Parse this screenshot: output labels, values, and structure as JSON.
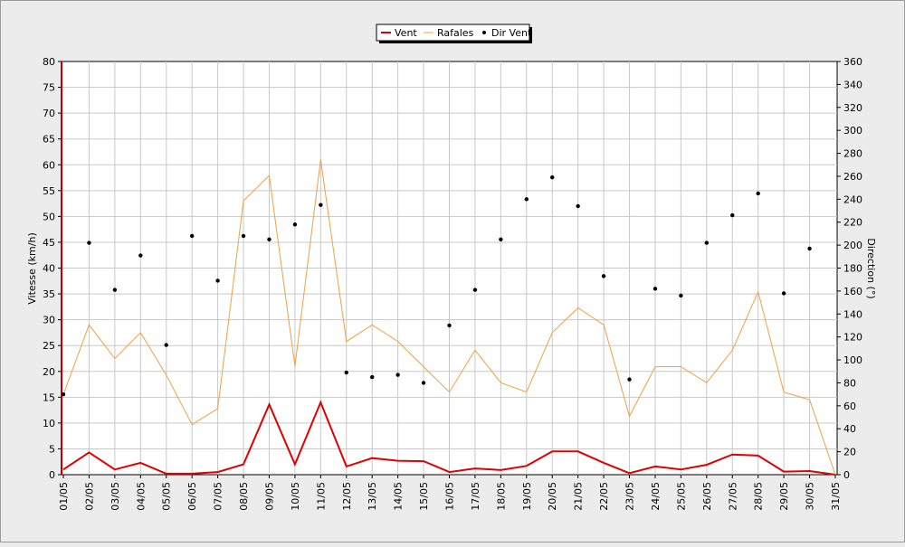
{
  "chart_data": {
    "type": "line",
    "legend": {
      "position": "top-center",
      "items": [
        {
          "label": "Vent",
          "color": "#e00000",
          "style": "line"
        },
        {
          "label": "Rafales",
          "color": "#f0a040",
          "style": "line"
        },
        {
          "label": "Dir Vent",
          "color": "#000000",
          "style": "dot"
        }
      ]
    },
    "y_left": {
      "label": "Vitesse (km/h)",
      "min": 0,
      "max": 80,
      "step": 5
    },
    "y_right": {
      "label": "Direction (°)",
      "min": 0,
      "max": 360,
      "step": 20
    },
    "grid": true,
    "categories": [
      "01/05",
      "02/05",
      "03/05",
      "04/05",
      "05/05",
      "06/05",
      "07/05",
      "08/05",
      "09/05",
      "10/05",
      "11/05",
      "12/05",
      "13/05",
      "14/05",
      "15/05",
      "16/05",
      "17/05",
      "18/05",
      "19/05",
      "20/05",
      "21/05",
      "22/05",
      "23/05",
      "24/05",
      "25/05",
      "26/05",
      "27/05",
      "28/05",
      "29/05",
      "30/05",
      "31/05"
    ],
    "series": [
      {
        "name": "Vent",
        "axis": "left",
        "kind": "line",
        "color": "#e00000",
        "values": [
          1,
          4.3,
          1,
          2.3,
          0.2,
          0.2,
          0.5,
          2,
          13.6,
          2,
          14,
          1.6,
          3.2,
          2.7,
          2.6,
          0.5,
          1.2,
          0.9,
          1.7,
          4.5,
          4.5,
          2.3,
          0.3,
          1.6,
          1,
          1.9,
          3.9,
          3.7,
          0.6,
          0.7,
          0
        ]
      },
      {
        "name": "Rafales",
        "axis": "left",
        "kind": "line",
        "color": "#f0a040",
        "values": [
          15.5,
          29,
          22.5,
          27.5,
          19.3,
          9.7,
          12.8,
          53,
          57.9,
          21,
          61,
          25.8,
          29,
          25.8,
          20.9,
          16,
          24.1,
          17.8,
          16,
          27.5,
          32.3,
          29,
          11.3,
          20.9,
          20.9,
          17.8,
          24.1,
          35.4,
          16,
          14.5,
          0
        ]
      },
      {
        "name": "Dir Vent",
        "axis": "right",
        "kind": "scatter",
        "color": "#000000",
        "values": [
          70,
          202,
          161,
          191,
          113,
          208,
          169,
          208,
          205,
          218,
          235,
          89,
          85,
          87,
          80,
          130,
          161,
          205,
          240,
          259,
          234,
          173,
          83,
          162,
          156,
          202,
          226,
          245,
          158,
          197,
          null
        ]
      }
    ]
  }
}
